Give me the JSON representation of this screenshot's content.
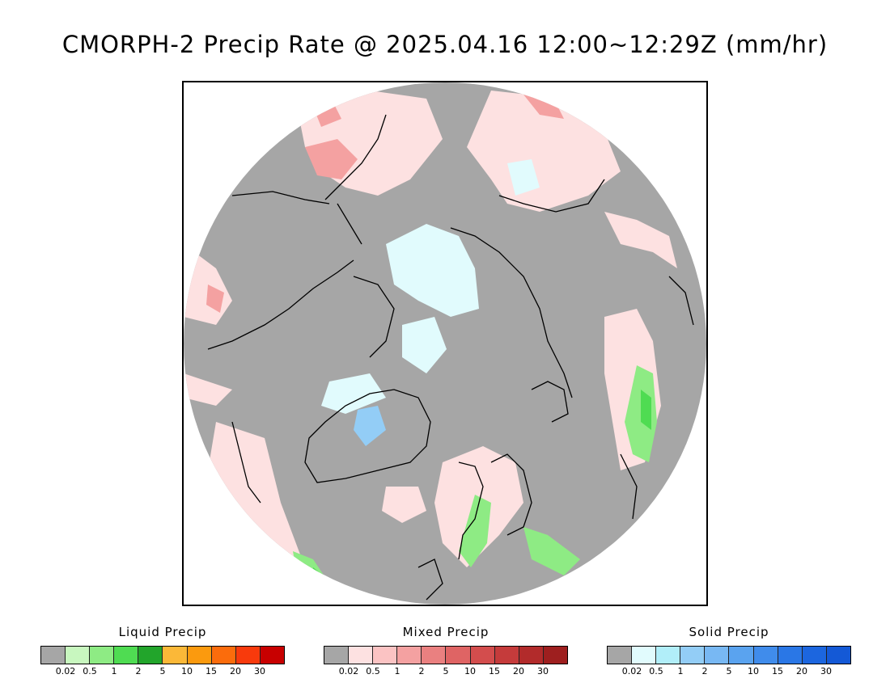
{
  "title": "CMORPH-2 Precip Rate @ 2025.04.16 12:00~12:29Z (mm/hr)",
  "map": {
    "background_color": "#a6a6a6",
    "coastline_color": "#000000"
  },
  "legends": [
    {
      "title": "Liquid Precip",
      "colors": [
        "#a6a6a6",
        "#c8f7bf",
        "#8eeb84",
        "#4fdc52",
        "#22a52b",
        "#fbb838",
        "#fb9a0e",
        "#fb6c0c",
        "#f83a0c",
        "#c80000"
      ],
      "ticks": [
        "0.02",
        "0.5",
        "1",
        "2",
        "5",
        "10",
        "15",
        "20",
        "30"
      ]
    },
    {
      "title": "Mixed Precip",
      "colors": [
        "#a6a6a6",
        "#fde1e1",
        "#fbc3c3",
        "#f4a1a1",
        "#ea8080",
        "#df6464",
        "#d34d4d",
        "#c53b3b",
        "#b22b2b",
        "#9e1f1f"
      ],
      "ticks": [
        "0.02",
        "0.5",
        "1",
        "2",
        "5",
        "10",
        "15",
        "20",
        "30"
      ]
    },
    {
      "title": "Solid Precip",
      "colors": [
        "#a6a6a6",
        "#e1fbfd",
        "#b1eef9",
        "#93cdf6",
        "#78b8f3",
        "#5aa3ef",
        "#408ceb",
        "#2a77e6",
        "#1c66df",
        "#1459d6"
      ],
      "ticks": [
        "0.02",
        "0.5",
        "1",
        "2",
        "5",
        "10",
        "15",
        "20",
        "30"
      ]
    }
  ]
}
